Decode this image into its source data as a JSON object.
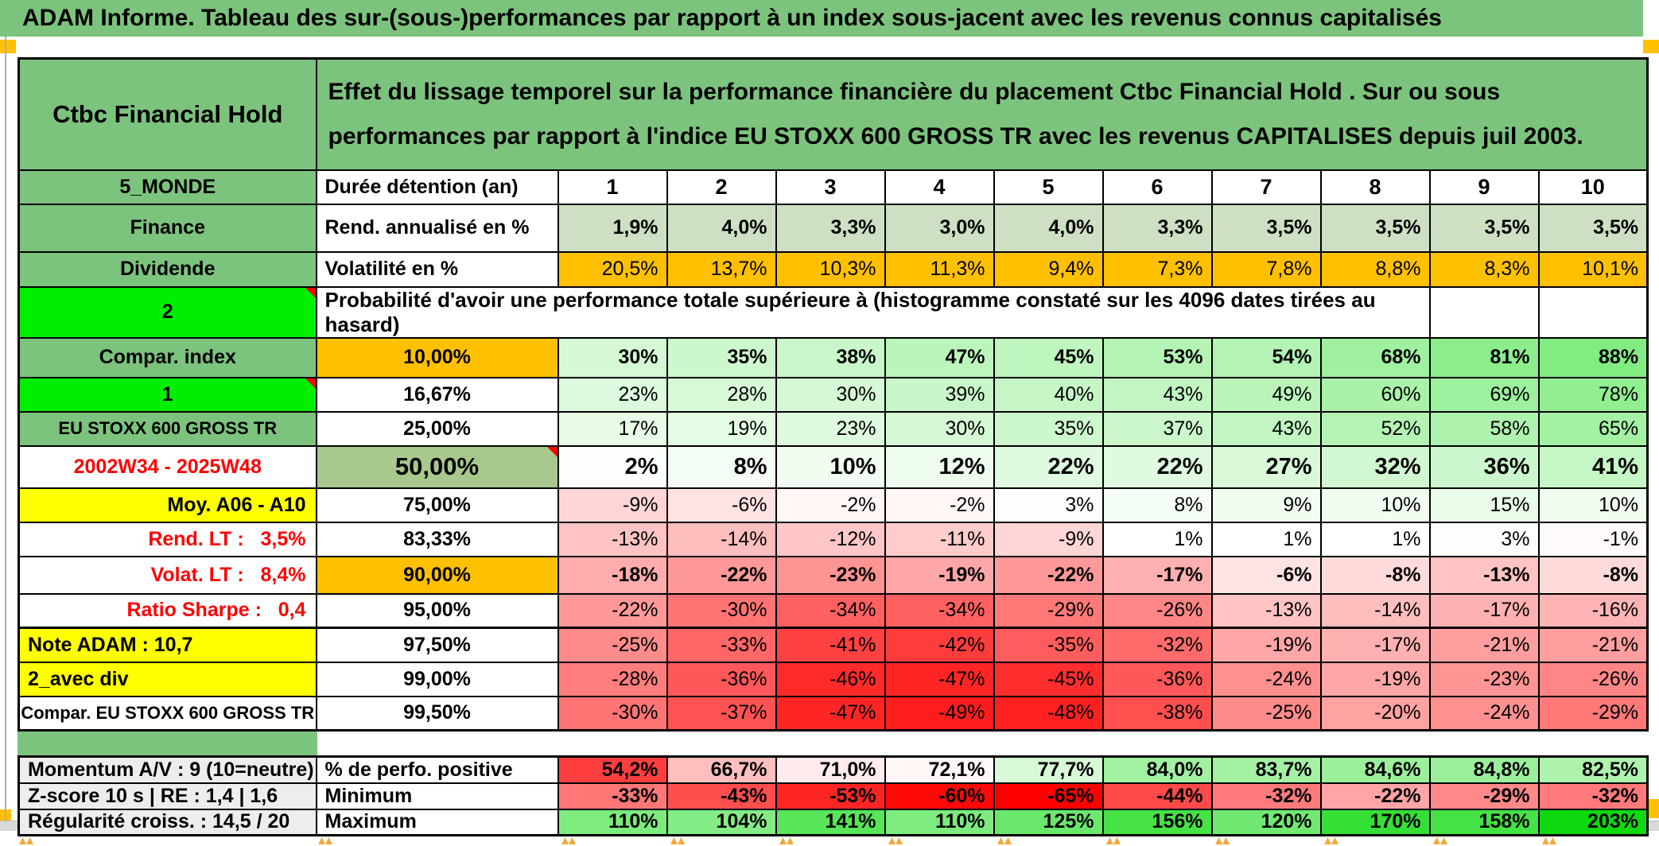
{
  "title": "ADAM Informe. Tableau des sur-(sous-)performances par rapport à un index sous-jacent avec les revenus connus capitalisés",
  "header": {
    "asset_name": "Ctbc Financial Hold",
    "description": "Effet du lissage temporel sur la performance financière du placement Ctbc Financial Hold . Sur ou sous performances par rapport à l'indice EU STOXX 600 GROSS TR avec les revenus CAPITALISES depuis juil 2003."
  },
  "palette": {
    "band_green": "#7CC47D",
    "bright_green": "#00EF00",
    "orange": "#FFC000",
    "yellow": "#FFFF00",
    "sage": "#CEDFC3",
    "olive": "#A9C88E",
    "gray_label": "#EDEDED",
    "red_text": "#FF0000",
    "marker_gold": "#FFC000"
  },
  "probability_note": "Probabilité d'avoir une performance totale supérieure à (histogramme constaté sur les 4096 dates tirées au hasard)",
  "rows": [
    {
      "label": "5_MONDE",
      "label_bg": "#7CC47D",
      "label_color": "#000000",
      "label_align": "center",
      "col2": "Durée détention (an)",
      "col2_bg": "#FFFFFF",
      "col2_align": "left",
      "kind": "columns",
      "cells": [
        "1",
        "2",
        "3",
        "4",
        "5",
        "6",
        "7",
        "8",
        "9",
        "10"
      ],
      "section": "main"
    },
    {
      "label": "Finance",
      "label_bg": "#7CC47D",
      "label_color": "#000000",
      "label_align": "center",
      "col2": "Rend. annualisé en %",
      "col2_bg": "#FFFFFF",
      "col2_align": "left",
      "cells": [
        "1,9%",
        "4,0%",
        "3,3%",
        "3,0%",
        "4,0%",
        "3,3%",
        "3,5%",
        "3,5%",
        "3,5%",
        "3,5%"
      ],
      "cells_bg": "#CEDFC3",
      "cells_bold": true,
      "section": "main"
    },
    {
      "label": "Dividende",
      "label_bg": "#7CC47D",
      "label_color": "#000000",
      "label_align": "center",
      "col2": "Volatilité en %",
      "col2_bg": "#FFFFFF",
      "col2_align": "left",
      "cells": [
        "20,5%",
        "13,7%",
        "10,3%",
        "11,3%",
        "9,4%",
        "7,3%",
        "7,8%",
        "8,8%",
        "8,3%",
        "10,1%"
      ],
      "cells_bg": "#FFC000",
      "section": "main"
    },
    {
      "label": "2",
      "label_bg": "#00EF00",
      "label_color": "#000000",
      "label_align": "center",
      "label_corner": true,
      "merged_note": true,
      "empty_cells": 2,
      "section": "main"
    },
    {
      "label": "Compar. index",
      "label_bg": "#7CC47D",
      "label_color": "#000000",
      "label_align": "center",
      "col2": "10,00%",
      "col2_bg": "#FFC000",
      "col2_align": "center",
      "cells": [
        "30%",
        "35%",
        "38%",
        "47%",
        "45%",
        "53%",
        "54%",
        "68%",
        "81%",
        "88%"
      ],
      "scale": "prob",
      "cells_bold": true,
      "section": "main"
    },
    {
      "label": "1",
      "label_bg": "#00EF00",
      "label_color": "#000000",
      "label_align": "center",
      "label_corner": true,
      "col2": "16,67%",
      "col2_bg": "#FFFFFF",
      "col2_align": "center",
      "cells": [
        "23%",
        "28%",
        "30%",
        "39%",
        "40%",
        "43%",
        "49%",
        "60%",
        "69%",
        "78%"
      ],
      "scale": "prob",
      "section": "main"
    },
    {
      "label": "EU STOXX 600 GROSS TR",
      "label_bg": "#7CC47D",
      "label_color": "#000000",
      "label_align": "center",
      "label_small": true,
      "col2": "25,00%",
      "col2_bg": "#FFFFFF",
      "col2_align": "center",
      "cells": [
        "17%",
        "19%",
        "23%",
        "30%",
        "35%",
        "37%",
        "43%",
        "52%",
        "58%",
        "65%"
      ],
      "scale": "prob",
      "section": "main"
    },
    {
      "label": "2002W34 - 2025W48",
      "label_bg": "#FFFFFF",
      "label_color": "#FF0000",
      "label_align": "center",
      "col2": "50,00%",
      "col2_bg": "#A9C88E",
      "col2_align": "center",
      "col2_big": true,
      "col2_corner": true,
      "cells": [
        "2%",
        "8%",
        "10%",
        "12%",
        "22%",
        "22%",
        "27%",
        "32%",
        "36%",
        "41%"
      ],
      "scale": "prob",
      "cells_bold": true,
      "cells_big": true,
      "section": "main"
    },
    {
      "label": "Moy. A06 - A10",
      "label_bg": "#FFFF00",
      "label_color": "#000000",
      "label_align": "right",
      "col2": "75,00%",
      "col2_bg": "#FFFFFF",
      "col2_align": "center",
      "cells": [
        "-9%",
        "-6%",
        "-2%",
        "-2%",
        "3%",
        "8%",
        "9%",
        "10%",
        "15%",
        "10%"
      ],
      "scale": "prob",
      "section": "main"
    },
    {
      "label": "Rend. LT :   3,5%",
      "label_bg": "#FFFFFF",
      "label_color": "#FF0000",
      "label_align": "right",
      "col2": "83,33%",
      "col2_bg": "#FFFFFF",
      "col2_align": "center",
      "cells": [
        "-13%",
        "-14%",
        "-12%",
        "-11%",
        "-9%",
        "1%",
        "1%",
        "1%",
        "3%",
        "-1%"
      ],
      "scale": "prob",
      "section": "main"
    },
    {
      "label": "Volat. LT :   8,4%",
      "label_bg": "#FFFFFF",
      "label_color": "#FF0000",
      "label_align": "right",
      "col2": "90,00%",
      "col2_bg": "#FFC000",
      "col2_align": "center",
      "cells": [
        "-18%",
        "-22%",
        "-23%",
        "-19%",
        "-22%",
        "-17%",
        "-6%",
        "-8%",
        "-13%",
        "-8%"
      ],
      "scale": "prob",
      "cells_bold": true,
      "section": "main"
    },
    {
      "label": "Ratio Sharpe :   0,4",
      "label_bg": "#FFFFFF",
      "label_color": "#FF0000",
      "label_align": "right",
      "col2": "95,00%",
      "col2_bg": "#FFFFFF",
      "col2_align": "center",
      "cells": [
        "-22%",
        "-30%",
        "-34%",
        "-34%",
        "-29%",
        "-26%",
        "-13%",
        "-14%",
        "-17%",
        "-16%"
      ],
      "scale": "prob",
      "section": "main"
    },
    {
      "label": "Note ADAM : 10,7",
      "label_bg": "#FFFF00",
      "label_color": "#000000",
      "label_align": "left",
      "col2": "97,50%",
      "col2_bg": "#FFFFFF",
      "col2_align": "center",
      "cells": [
        "-25%",
        "-33%",
        "-41%",
        "-42%",
        "-35%",
        "-32%",
        "-19%",
        "-17%",
        "-21%",
        "-21%"
      ],
      "scale": "prob",
      "thick_top": true,
      "section": "main"
    },
    {
      "label": "2_avec div",
      "label_bg": "#FFFF00",
      "label_color": "#000000",
      "label_align": "left",
      "col2": "99,00%",
      "col2_bg": "#FFFFFF",
      "col2_align": "center",
      "cells": [
        "-28%",
        "-36%",
        "-46%",
        "-47%",
        "-45%",
        "-36%",
        "-24%",
        "-19%",
        "-23%",
        "-26%"
      ],
      "scale": "prob",
      "section": "main"
    },
    {
      "label": "Compar. EU STOXX 600 GROSS TR",
      "label_bg": "#FFFFFF",
      "label_color": "#000000",
      "label_align": "center",
      "label_small": true,
      "col2": "99,50%",
      "col2_bg": "#FFFFFF",
      "col2_align": "center",
      "cells": [
        "-30%",
        "-37%",
        "-47%",
        "-49%",
        "-48%",
        "-38%",
        "-25%",
        "-20%",
        "-24%",
        "-29%"
      ],
      "scale": "prob",
      "section": "main"
    },
    {
      "label": "Momentum A/V : 9 (10=neutre)",
      "label_bg": "#EDEDED",
      "label_color": "#000000",
      "label_align": "left",
      "col2": "% de perfo. positive",
      "col2_bg": "#FFFFFF",
      "col2_align": "left",
      "cells": [
        "54,2%",
        "66,7%",
        "71,0%",
        "72,1%",
        "77,7%",
        "84,0%",
        "83,7%",
        "84,6%",
        "84,8%",
        "82,5%"
      ],
      "scale": "perfpos",
      "cells_bold": true,
      "section": "bottom"
    },
    {
      "label": "Z-score 10 s | RE : 1,4 | 1,6",
      "label_bg": "#EDEDED",
      "label_color": "#000000",
      "label_align": "left",
      "col2": "Minimum",
      "col2_bg": "#FFFFFF",
      "col2_align": "left",
      "cells": [
        "-33%",
        "-43%",
        "-53%",
        "-60%",
        "-65%",
        "-44%",
        "-32%",
        "-22%",
        "-29%",
        "-32%"
      ],
      "scale": "min",
      "cells_bold": true,
      "section": "bottom"
    },
    {
      "label": "Régularité croiss. : 14,5 / 20",
      "label_bg": "#EDEDED",
      "label_color": "#000000",
      "label_align": "left",
      "col2": "Maximum",
      "col2_bg": "#FFFFFF",
      "col2_align": "left",
      "cells": [
        "110%",
        "104%",
        "141%",
        "110%",
        "125%",
        "156%",
        "120%",
        "170%",
        "158%",
        "203%"
      ],
      "scale": "max",
      "cells_bold": true,
      "section": "bottom"
    }
  ]
}
